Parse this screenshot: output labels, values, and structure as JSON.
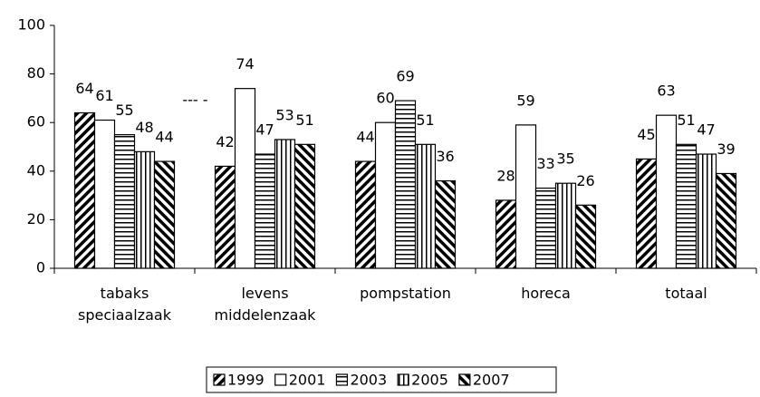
{
  "chart_data": {
    "type": "bar",
    "categories": [
      "tabaks speciaalzaak",
      "levens middelenzaak",
      "pompstation",
      "horeca",
      "totaal"
    ],
    "series": [
      {
        "name": "1999",
        "color": "#000000",
        "pattern": "diagonal-up",
        "values": [
          64,
          42,
          44,
          28,
          45
        ]
      },
      {
        "name": "2001",
        "color": "#000000",
        "pattern": "none",
        "values": [
          61,
          74,
          60,
          59,
          63
        ]
      },
      {
        "name": "2003",
        "color": "#000000",
        "pattern": "horizontal",
        "values": [
          55,
          47,
          69,
          33,
          51
        ]
      },
      {
        "name": "2005",
        "color": "#000000",
        "pattern": "vertical",
        "values": [
          48,
          53,
          51,
          35,
          47
        ]
      },
      {
        "name": "2007",
        "color": "#000000",
        "pattern": "diagonal-down",
        "values": [
          44,
          51,
          36,
          26,
          39
        ]
      }
    ],
    "annotations": [
      {
        "text": "--- -",
        "category": 1,
        "y": 66
      }
    ],
    "ylim": [
      0,
      100
    ],
    "yticks": [
      0,
      20,
      40,
      60,
      80,
      100
    ],
    "grid": false,
    "legend": "bottom"
  }
}
